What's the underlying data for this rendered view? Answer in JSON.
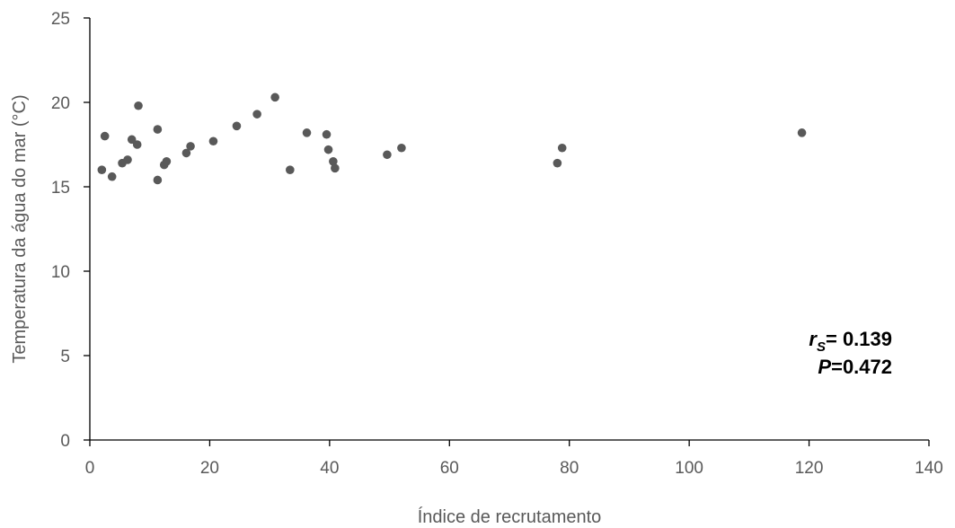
{
  "chart_data": {
    "type": "scatter",
    "xlabel": "Índice de recrutamento",
    "ylabel": "Temperatura da água do mar (°C)",
    "xlim": [
      0,
      140
    ],
    "ylim": [
      0,
      25
    ],
    "x_ticks": [
      "0",
      "20",
      "40",
      "60",
      "80",
      "100",
      "120",
      "140"
    ],
    "y_ticks": [
      "0",
      "5",
      "10",
      "15",
      "20",
      "25"
    ],
    "grid": false,
    "marker_color": "#595959",
    "axis_color": "#000000",
    "annotation": {
      "rs_label": "r",
      "rs_subscript": "S",
      "rs_value": "= 0.139",
      "p_label": "P",
      "p_value": "=0.472"
    },
    "points": [
      {
        "x": 2.0,
        "y": 16.0
      },
      {
        "x": 2.5,
        "y": 18.0
      },
      {
        "x": 3.7,
        "y": 15.6
      },
      {
        "x": 5.4,
        "y": 16.4
      },
      {
        "x": 6.3,
        "y": 16.6
      },
      {
        "x": 7.0,
        "y": 17.8
      },
      {
        "x": 7.9,
        "y": 17.5
      },
      {
        "x": 8.1,
        "y": 19.8
      },
      {
        "x": 11.3,
        "y": 18.4
      },
      {
        "x": 11.3,
        "y": 15.4
      },
      {
        "x": 12.4,
        "y": 16.3
      },
      {
        "x": 12.8,
        "y": 16.5
      },
      {
        "x": 16.1,
        "y": 17.0
      },
      {
        "x": 16.8,
        "y": 17.4
      },
      {
        "x": 20.6,
        "y": 17.7
      },
      {
        "x": 24.5,
        "y": 18.6
      },
      {
        "x": 27.9,
        "y": 19.3
      },
      {
        "x": 30.9,
        "y": 20.3
      },
      {
        "x": 33.4,
        "y": 16.0
      },
      {
        "x": 36.2,
        "y": 18.2
      },
      {
        "x": 39.5,
        "y": 18.1
      },
      {
        "x": 39.8,
        "y": 17.2
      },
      {
        "x": 40.6,
        "y": 16.5
      },
      {
        "x": 40.9,
        "y": 16.1
      },
      {
        "x": 49.6,
        "y": 16.9
      },
      {
        "x": 52.0,
        "y": 17.3
      },
      {
        "x": 78.0,
        "y": 16.4
      },
      {
        "x": 78.8,
        "y": 17.3
      },
      {
        "x": 118.8,
        "y": 18.2
      }
    ]
  }
}
